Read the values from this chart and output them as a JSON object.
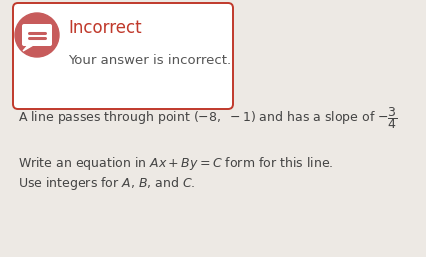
{
  "bg_color": "#ede9e4",
  "incorrect_color": "#c0392b",
  "incorrect_label": "Incorrect",
  "sub_label": "Your answer is incorrect.",
  "icon_color": "#c75b5b",
  "box_edge_color": "#c0392b",
  "box_fill_color": "#ffffff",
  "text_color_dark": "#444444",
  "text_color_sub": "#555555"
}
